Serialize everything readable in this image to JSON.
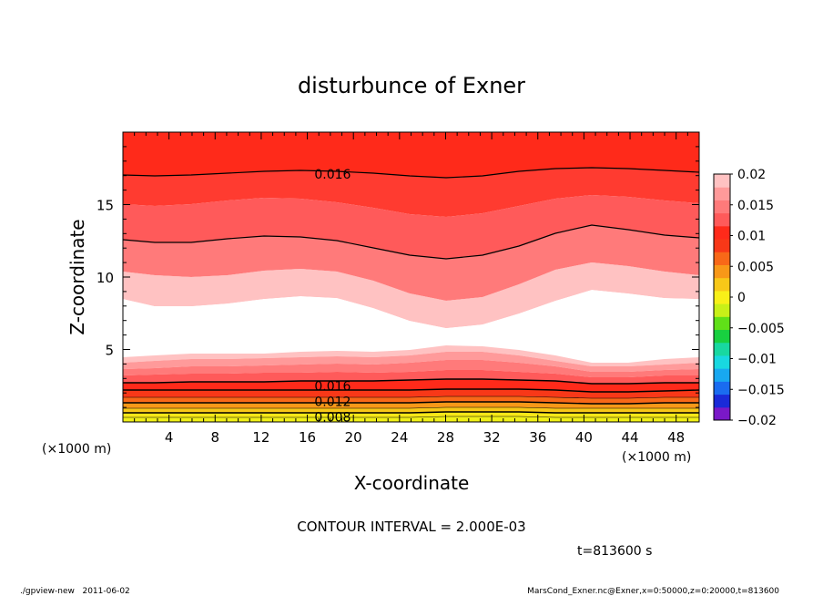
{
  "chart_data": {
    "type": "contour",
    "title": "disturbunce of Exner",
    "xlabel": "X-coordinate",
    "ylabel": "Z-coordinate",
    "x_unit_left": "(×1000 m)",
    "x_unit_right": "(×1000 m)",
    "xlim": [
      0,
      50
    ],
    "ylim": [
      0,
      20
    ],
    "x_ticks": [
      4,
      8,
      12,
      16,
      20,
      24,
      28,
      32,
      36,
      40,
      44,
      48
    ],
    "y_ticks": [
      5,
      10,
      15
    ],
    "contour_interval_text": "CONTOUR INTERVAL = 2.000E-03",
    "contour_labels": [
      {
        "text": "0.016",
        "x": 18.2,
        "z": 17.1
      },
      {
        "text": "0.016",
        "x": 18.2,
        "z": 2.5
      },
      {
        "text": "0.012",
        "x": 18.2,
        "z": 1.4
      },
      {
        "text": "0.008",
        "x": 18.2,
        "z": 0.35
      }
    ],
    "colorbar": {
      "tick_labels": [
        "0.02",
        "0.015",
        "0.01",
        "0.005",
        "0",
        "−0.005",
        "−0.01",
        "−0.015",
        "−0.02"
      ],
      "range": [
        -0.02,
        0.02
      ]
    },
    "time_text": "t=813600 s"
  },
  "footer": {
    "left": "./gpview-new   2011-06-02",
    "right": "MarsCond_Exner.nc@Exner,x=0:50000,z=0:20000,t=813600"
  },
  "colors": {
    "levels": [
      "#ffc2c2",
      "#ff9a9a",
      "#ff7a7a",
      "#ff5a5a",
      "#ff3b30",
      "#ff2a1a"
    ],
    "white": "#ffffff",
    "colorbar": [
      "#7a18c8",
      "#1a2ad8",
      "#1a6cf0",
      "#18a8f0",
      "#18d8e0",
      "#18d8a0",
      "#18d040",
      "#60e018",
      "#c8f018",
      "#f8f018",
      "#f8c818",
      "#f89818",
      "#f86818",
      "#f83818",
      "#ff2a1a",
      "#ff5a5a",
      "#ff7a7a",
      "#ff9a9a",
      "#ffc2c2"
    ]
  }
}
